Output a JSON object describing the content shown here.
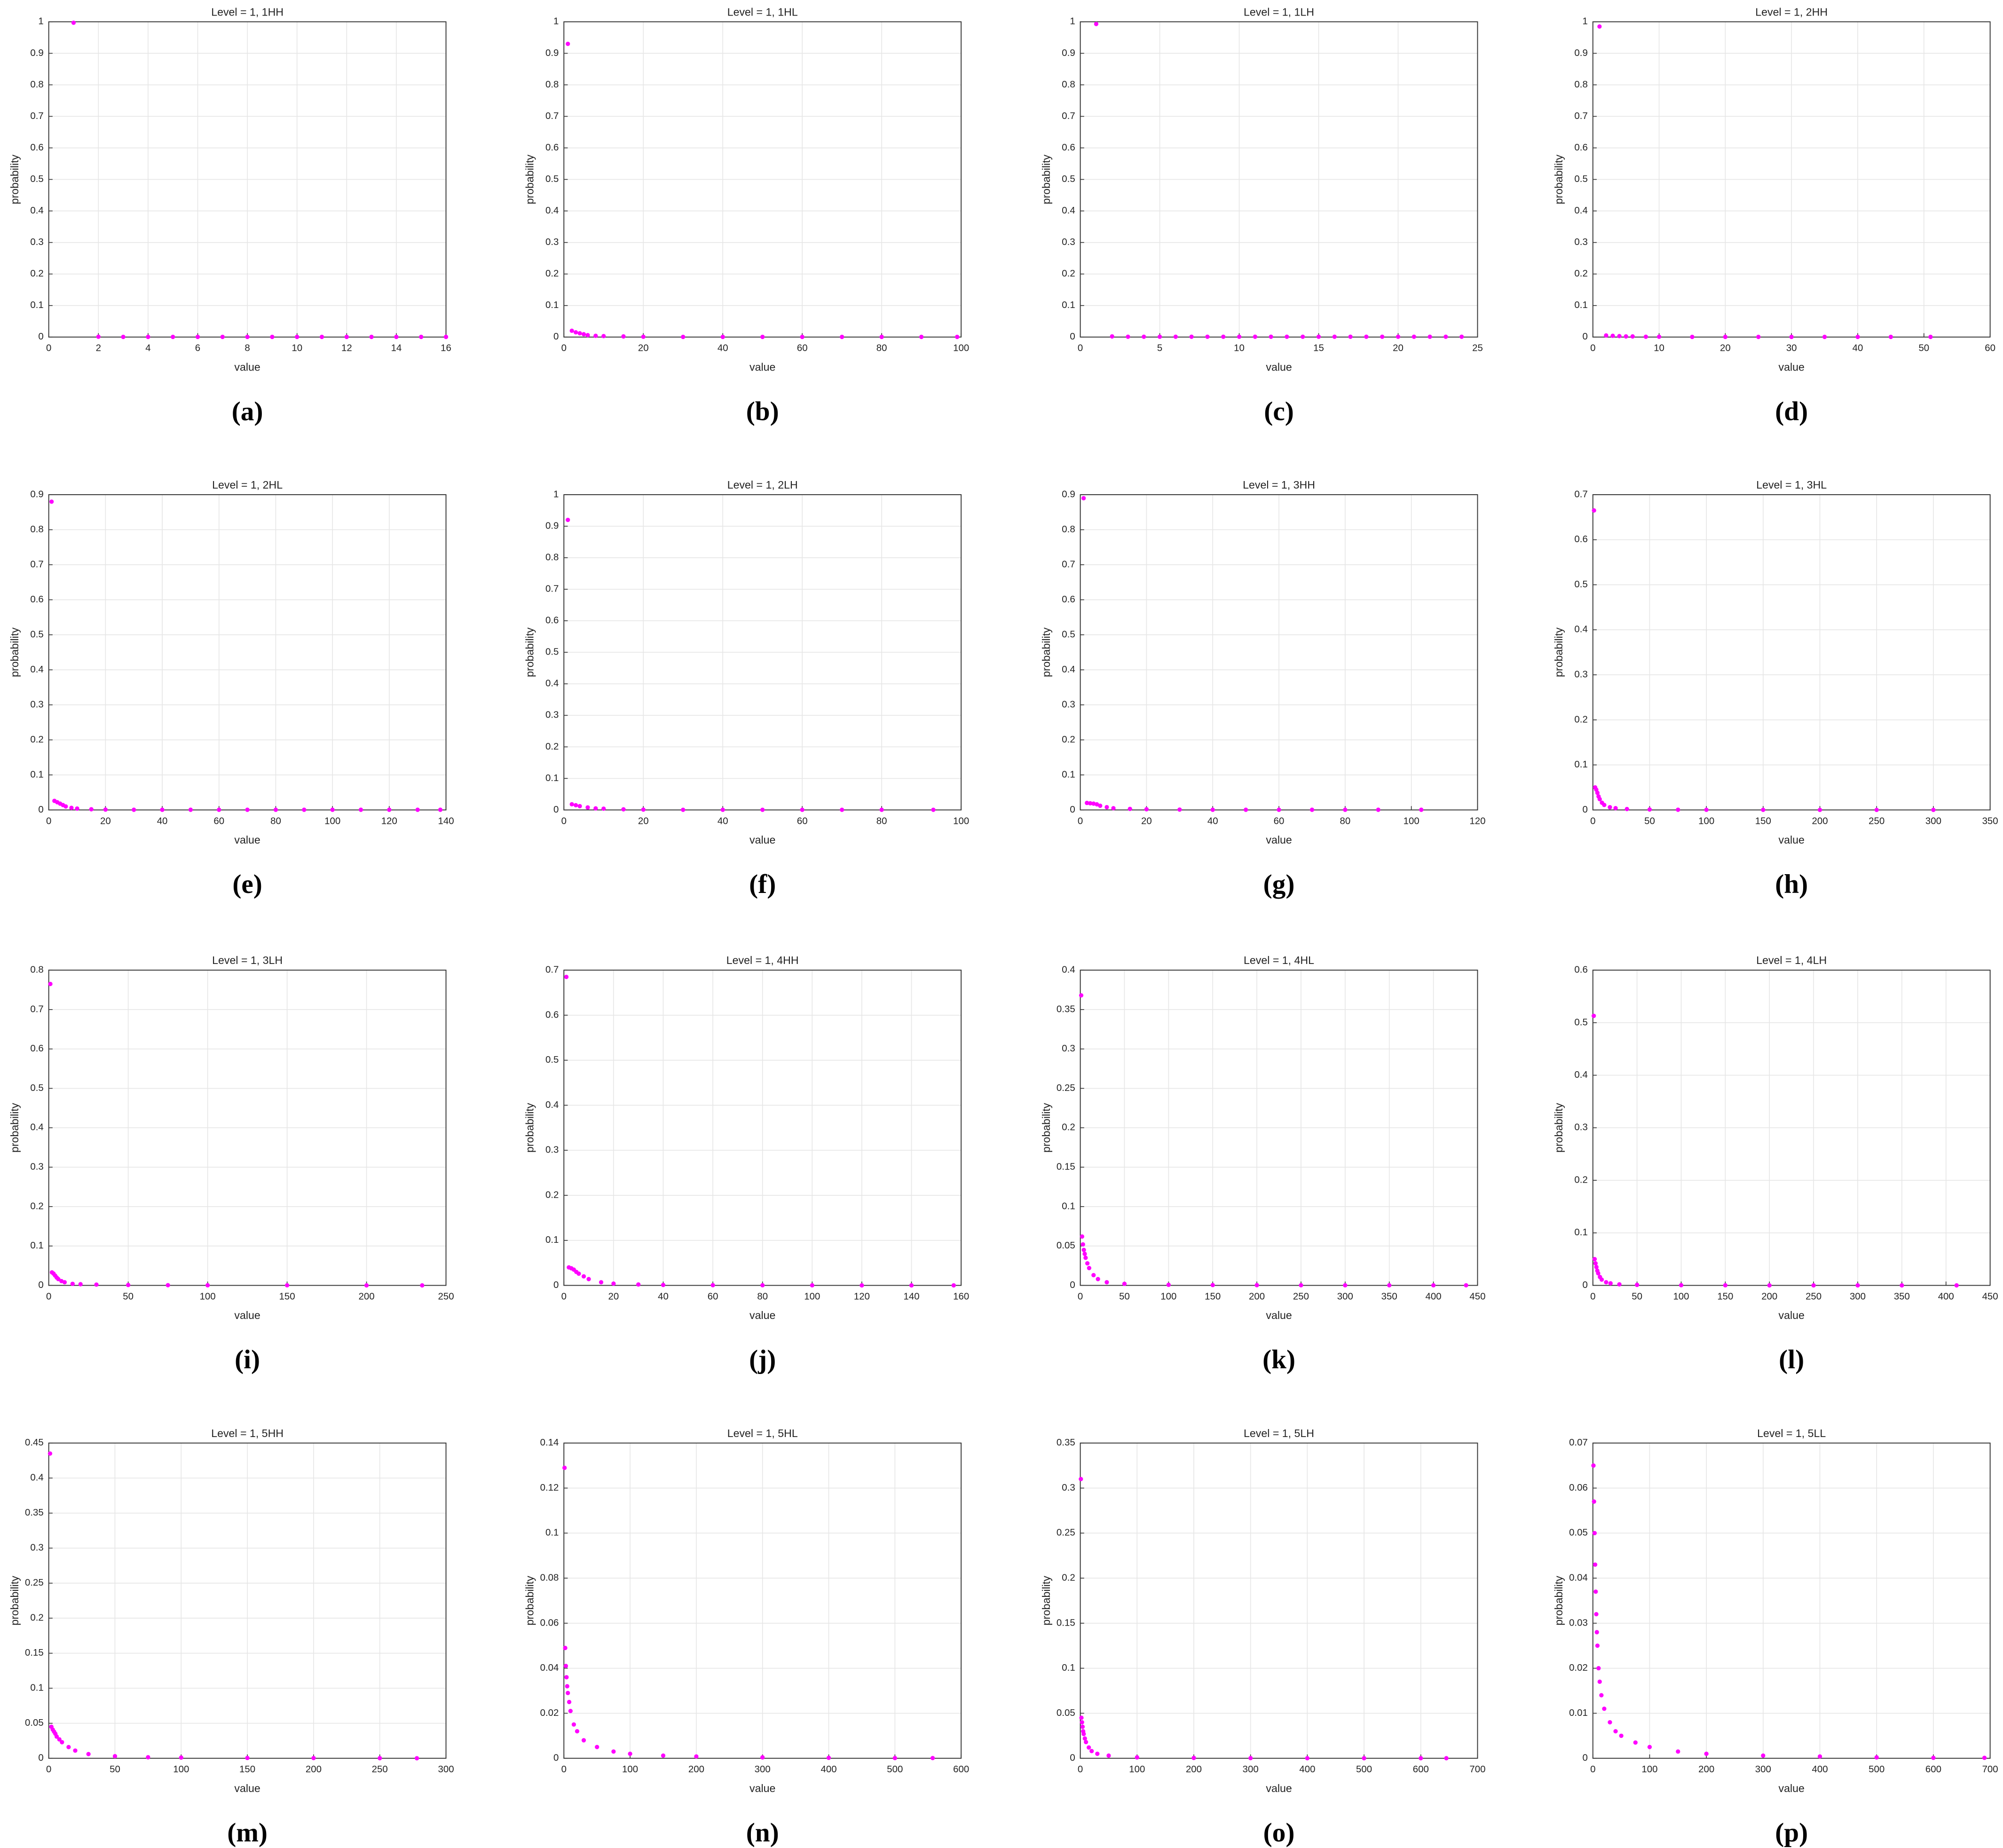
{
  "chart_data": [
    {
      "type": "scatter",
      "title": "Level = 1, 1HH",
      "xlabel": "value",
      "ylabel": "probability",
      "caption": "(a)",
      "color": "#ff00ff",
      "grid": true,
      "x": [
        1,
        2,
        3,
        4,
        5,
        6,
        7,
        8,
        9,
        10,
        11,
        12,
        13,
        14,
        15,
        16
      ],
      "values": [
        0.997,
        0.001,
        0.0005,
        0.0005,
        0.0005,
        0.0005,
        0.0005,
        0.0005,
        0.0005,
        0.0005,
        0.0005,
        0.0005,
        0.0005,
        0.0005,
        0.0005,
        0.0005
      ],
      "xlim": [
        0,
        16
      ],
      "xticks": [
        0,
        2,
        4,
        6,
        8,
        10,
        12,
        14,
        16
      ],
      "ylim": [
        0,
        1
      ],
      "yticks": [
        0,
        0.1,
        0.2,
        0.3,
        0.4,
        0.5,
        0.6,
        0.7,
        0.8,
        0.9,
        1
      ]
    },
    {
      "type": "scatter",
      "title": "Level = 1, 1HL",
      "xlabel": "value",
      "ylabel": "probability",
      "caption": "(b)",
      "color": "#ff00ff",
      "grid": true,
      "x": [
        1,
        2,
        3,
        4,
        5,
        6,
        8,
        10,
        15,
        20,
        30,
        40,
        50,
        60,
        70,
        80,
        90,
        99
      ],
      "values": [
        0.93,
        0.02,
        0.015,
        0.012,
        0.009,
        0.006,
        0.004,
        0.003,
        0.002,
        0.001,
        0.0005,
        0.0005,
        0.0005,
        0.0005,
        0.0005,
        0.0005,
        0.0005,
        0.0005
      ],
      "xlim": [
        0,
        100
      ],
      "xticks": [
        0,
        20,
        40,
        60,
        80,
        100
      ],
      "ylim": [
        0,
        1
      ],
      "yticks": [
        0,
        0.1,
        0.2,
        0.3,
        0.4,
        0.5,
        0.6,
        0.7,
        0.8,
        0.9,
        1
      ]
    },
    {
      "type": "scatter",
      "title": "Level = 1, 1LH",
      "xlabel": "value",
      "ylabel": "probability",
      "caption": "(c)",
      "color": "#ff00ff",
      "grid": true,
      "x": [
        1,
        2,
        3,
        4,
        5,
        6,
        7,
        8,
        9,
        10,
        11,
        12,
        13,
        14,
        15,
        16,
        17,
        18,
        19,
        20,
        21,
        22,
        23,
        24
      ],
      "values": [
        0.993,
        0.002,
        0.001,
        0.001,
        0.001,
        0.001,
        0.001,
        0.001,
        0.001,
        0.001,
        0.001,
        0.001,
        0.001,
        0.001,
        0.001,
        0.001,
        0.001,
        0.001,
        0.001,
        0.001,
        0.001,
        0.001,
        0.001,
        0.001
      ],
      "xlim": [
        0,
        25
      ],
      "xticks": [
        0,
        5,
        10,
        15,
        20,
        25
      ],
      "ylim": [
        0,
        1
      ],
      "yticks": [
        0,
        0.1,
        0.2,
        0.3,
        0.4,
        0.5,
        0.6,
        0.7,
        0.8,
        0.9,
        1
      ]
    },
    {
      "type": "scatter",
      "title": "Level = 1, 2HH",
      "xlabel": "value",
      "ylabel": "probability",
      "caption": "(d)",
      "color": "#ff00ff",
      "grid": true,
      "x": [
        1,
        2,
        3,
        4,
        5,
        6,
        8,
        10,
        15,
        20,
        25,
        30,
        35,
        40,
        45,
        51
      ],
      "values": [
        0.985,
        0.005,
        0.004,
        0.003,
        0.002,
        0.002,
        0.001,
        0.001,
        0.0005,
        0.0005,
        0.0005,
        0.0005,
        0.0005,
        0.0005,
        0.0005,
        0.0005
      ],
      "xlim": [
        0,
        60
      ],
      "xticks": [
        0,
        10,
        20,
        30,
        40,
        50,
        60
      ],
      "ylim": [
        0,
        1
      ],
      "yticks": [
        0,
        0.1,
        0.2,
        0.3,
        0.4,
        0.5,
        0.6,
        0.7,
        0.8,
        0.9,
        1
      ]
    },
    {
      "type": "scatter",
      "title": "Level = 1, 2HL",
      "xlabel": "value",
      "ylabel": "probability",
      "caption": "(e)",
      "color": "#ff00ff",
      "grid": true,
      "x": [
        1,
        2,
        3,
        4,
        5,
        6,
        8,
        10,
        15,
        20,
        30,
        40,
        50,
        60,
        70,
        80,
        90,
        100,
        110,
        120,
        130,
        138
      ],
      "values": [
        0.88,
        0.026,
        0.022,
        0.018,
        0.014,
        0.01,
        0.006,
        0.004,
        0.002,
        0.001,
        0.0005,
        0.0005,
        0.0005,
        0.0005,
        0.0005,
        0.0005,
        0.0005,
        0.0005,
        0.0005,
        0.0005,
        0.0005,
        0.0005
      ],
      "xlim": [
        0,
        140
      ],
      "xticks": [
        0,
        20,
        40,
        60,
        80,
        100,
        120,
        140
      ],
      "ylim": [
        0,
        0.9
      ],
      "yticks": [
        0,
        0.1,
        0.2,
        0.3,
        0.4,
        0.5,
        0.6,
        0.7,
        0.8,
        0.9
      ]
    },
    {
      "type": "scatter",
      "title": "Level = 1, 2LH",
      "xlabel": "value",
      "ylabel": "probability",
      "caption": "(f)",
      "color": "#ff00ff",
      "grid": true,
      "x": [
        1,
        2,
        3,
        4,
        6,
        8,
        10,
        15,
        20,
        30,
        40,
        50,
        60,
        70,
        80,
        93
      ],
      "values": [
        0.92,
        0.018,
        0.015,
        0.012,
        0.008,
        0.005,
        0.004,
        0.002,
        0.001,
        0.0005,
        0.0005,
        0.0005,
        0.0005,
        0.0005,
        0.0005,
        0.0005
      ],
      "xlim": [
        0,
        100
      ],
      "xticks": [
        0,
        20,
        40,
        60,
        80,
        100
      ],
      "ylim": [
        0,
        1
      ],
      "yticks": [
        0,
        0.1,
        0.2,
        0.3,
        0.4,
        0.5,
        0.6,
        0.7,
        0.8,
        0.9,
        1
      ]
    },
    {
      "type": "scatter",
      "title": "Level = 1, 3HH",
      "xlabel": "value",
      "ylabel": "probability",
      "caption": "(g)",
      "color": "#ff00ff",
      "grid": true,
      "x": [
        1,
        2,
        3,
        4,
        5,
        6,
        8,
        10,
        15,
        20,
        30,
        40,
        50,
        60,
        70,
        80,
        90,
        103
      ],
      "values": [
        0.89,
        0.02,
        0.019,
        0.018,
        0.016,
        0.012,
        0.008,
        0.005,
        0.003,
        0.002,
        0.001,
        0.0005,
        0.0005,
        0.0005,
        0.0005,
        0.0005,
        0.0005,
        0.0005
      ],
      "xlim": [
        0,
        120
      ],
      "xticks": [
        0,
        20,
        40,
        60,
        80,
        100,
        120
      ],
      "ylim": [
        0,
        0.9
      ],
      "yticks": [
        0,
        0.1,
        0.2,
        0.3,
        0.4,
        0.5,
        0.6,
        0.7,
        0.8,
        0.9
      ]
    },
    {
      "type": "scatter",
      "title": "Level = 1, 3HL",
      "xlabel": "value",
      "ylabel": "probability",
      "caption": "(h)",
      "color": "#ff00ff",
      "grid": true,
      "x": [
        1,
        2,
        3,
        4,
        5,
        6,
        8,
        10,
        15,
        20,
        30,
        50,
        75,
        100,
        150,
        200,
        250,
        300
      ],
      "values": [
        0.665,
        0.05,
        0.045,
        0.038,
        0.03,
        0.024,
        0.016,
        0.011,
        0.006,
        0.004,
        0.002,
        0.001,
        0.0005,
        0.0003,
        0.0002,
        0.0001,
        0.0001,
        0.0001
      ],
      "xlim": [
        0,
        350
      ],
      "xticks": [
        0,
        50,
        100,
        150,
        200,
        250,
        300,
        350
      ],
      "ylim": [
        0,
        0.7
      ],
      "yticks": [
        0,
        0.1,
        0.2,
        0.3,
        0.4,
        0.5,
        0.6,
        0.7
      ]
    },
    {
      "type": "scatter",
      "title": "Level = 1, 3LH",
      "xlabel": "value",
      "ylabel": "probability",
      "caption": "(i)",
      "color": "#ff00ff",
      "grid": true,
      "x": [
        1,
        2,
        3,
        4,
        5,
        6,
        8,
        10,
        15,
        20,
        30,
        50,
        75,
        100,
        150,
        200,
        235
      ],
      "values": [
        0.765,
        0.033,
        0.03,
        0.025,
        0.02,
        0.016,
        0.011,
        0.008,
        0.004,
        0.003,
        0.002,
        0.001,
        0.0005,
        0.0003,
        0.0002,
        0.0001,
        0.0001
      ],
      "xlim": [
        0,
        250
      ],
      "xticks": [
        0,
        50,
        100,
        150,
        200,
        250
      ],
      "ylim": [
        0,
        0.8
      ],
      "yticks": [
        0,
        0.1,
        0.2,
        0.3,
        0.4,
        0.5,
        0.6,
        0.7,
        0.8
      ]
    },
    {
      "type": "scatter",
      "title": "Level = 1, 4HH",
      "xlabel": "value",
      "ylabel": "probability",
      "caption": "(j)",
      "color": "#ff00ff",
      "grid": true,
      "x": [
        1,
        2,
        3,
        4,
        5,
        6,
        8,
        10,
        15,
        20,
        30,
        40,
        60,
        80,
        100,
        120,
        140,
        157
      ],
      "values": [
        0.685,
        0.04,
        0.038,
        0.035,
        0.03,
        0.026,
        0.02,
        0.014,
        0.007,
        0.004,
        0.002,
        0.001,
        0.0005,
        0.0003,
        0.0002,
        0.0001,
        0.0001,
        0.0001
      ],
      "xlim": [
        0,
        160
      ],
      "xticks": [
        0,
        20,
        40,
        60,
        80,
        100,
        120,
        140,
        160
      ],
      "ylim": [
        0,
        0.7
      ],
      "yticks": [
        0,
        0.1,
        0.2,
        0.3,
        0.4,
        0.5,
        0.6,
        0.7
      ]
    },
    {
      "type": "scatter",
      "title": "Level = 1, 4HL",
      "xlabel": "value",
      "ylabel": "probability",
      "caption": "(k)",
      "color": "#ff00ff",
      "grid": true,
      "x": [
        1,
        2,
        3,
        4,
        5,
        6,
        8,
        10,
        15,
        20,
        30,
        50,
        100,
        150,
        200,
        250,
        300,
        350,
        400,
        437
      ],
      "values": [
        0.368,
        0.062,
        0.052,
        0.045,
        0.04,
        0.035,
        0.028,
        0.022,
        0.013,
        0.008,
        0.004,
        0.002,
        0.0007,
        0.0004,
        0.0003,
        0.0002,
        0.0001,
        0.0001,
        0.0001,
        0.0001
      ],
      "xlim": [
        0,
        450
      ],
      "xticks": [
        0,
        50,
        100,
        150,
        200,
        250,
        300,
        350,
        400,
        450
      ],
      "ylim": [
        0,
        0.4
      ],
      "yticks": [
        0,
        0.05,
        0.1,
        0.15,
        0.2,
        0.25,
        0.3,
        0.35,
        0.4
      ]
    },
    {
      "type": "scatter",
      "title": "Level = 1, 4LH",
      "xlabel": "value",
      "ylabel": "probability",
      "caption": "(l)",
      "color": "#ff00ff",
      "grid": true,
      "x": [
        1,
        2,
        3,
        4,
        5,
        6,
        8,
        10,
        15,
        20,
        30,
        50,
        100,
        150,
        200,
        250,
        300,
        350,
        412
      ],
      "values": [
        0.513,
        0.05,
        0.042,
        0.035,
        0.028,
        0.023,
        0.016,
        0.011,
        0.006,
        0.004,
        0.002,
        0.001,
        0.0004,
        0.0002,
        0.0001,
        0.0001,
        0.0001,
        0.0001,
        0.0001
      ],
      "xlim": [
        0,
        450
      ],
      "xticks": [
        0,
        50,
        100,
        150,
        200,
        250,
        300,
        350,
        400,
        450
      ],
      "ylim": [
        0,
        0.6
      ],
      "yticks": [
        0,
        0.1,
        0.2,
        0.3,
        0.4,
        0.5,
        0.6
      ]
    },
    {
      "type": "scatter",
      "title": "Level = 1, 5HH",
      "xlabel": "value",
      "ylabel": "probability",
      "caption": "(m)",
      "color": "#ff00ff",
      "grid": true,
      "x": [
        1,
        2,
        3,
        4,
        5,
        6,
        8,
        10,
        15,
        20,
        30,
        50,
        75,
        100,
        150,
        200,
        250,
        278
      ],
      "values": [
        0.435,
        0.045,
        0.041,
        0.038,
        0.035,
        0.031,
        0.027,
        0.023,
        0.016,
        0.011,
        0.006,
        0.003,
        0.0015,
        0.001,
        0.0005,
        0.0003,
        0.0002,
        0.0001
      ],
      "xlim": [
        0,
        300
      ],
      "xticks": [
        0,
        50,
        100,
        150,
        200,
        250,
        300
      ],
      "ylim": [
        0,
        0.45
      ],
      "yticks": [
        0,
        0.05,
        0.1,
        0.15,
        0.2,
        0.25,
        0.3,
        0.35,
        0.4,
        0.45
      ]
    },
    {
      "type": "scatter",
      "title": "Level = 1, 5HL",
      "xlabel": "value",
      "ylabel": "probability",
      "caption": "(n)",
      "color": "#ff00ff",
      "grid": true,
      "x": [
        1,
        2,
        3,
        4,
        5,
        6,
        8,
        10,
        15,
        20,
        30,
        50,
        75,
        100,
        150,
        200,
        300,
        400,
        500,
        557
      ],
      "values": [
        0.129,
        0.049,
        0.041,
        0.036,
        0.032,
        0.029,
        0.025,
        0.021,
        0.015,
        0.012,
        0.008,
        0.005,
        0.003,
        0.002,
        0.0012,
        0.0008,
        0.0004,
        0.0002,
        0.0001,
        0.0001
      ],
      "xlim": [
        0,
        600
      ],
      "xticks": [
        0,
        100,
        200,
        300,
        400,
        500,
        600
      ],
      "ylim": [
        0,
        0.14
      ],
      "yticks": [
        0,
        0.02,
        0.04,
        0.06,
        0.08,
        0.1,
        0.12,
        0.14
      ]
    },
    {
      "type": "scatter",
      "title": "Level = 1, 5LH",
      "xlabel": "value",
      "ylabel": "probability",
      "caption": "(o)",
      "color": "#ff00ff",
      "grid": true,
      "x": [
        1,
        2,
        3,
        4,
        5,
        6,
        8,
        10,
        15,
        20,
        30,
        50,
        100,
        200,
        300,
        400,
        500,
        600,
        645
      ],
      "values": [
        0.31,
        0.045,
        0.04,
        0.035,
        0.03,
        0.027,
        0.022,
        0.018,
        0.012,
        0.008,
        0.005,
        0.003,
        0.001,
        0.0004,
        0.0002,
        0.0001,
        0.0001,
        0.0001,
        0.0001
      ],
      "xlim": [
        0,
        700
      ],
      "xticks": [
        0,
        100,
        200,
        300,
        400,
        500,
        600,
        700
      ],
      "ylim": [
        0,
        0.35
      ],
      "yticks": [
        0,
        0.05,
        0.1,
        0.15,
        0.2,
        0.25,
        0.3,
        0.35
      ]
    },
    {
      "type": "scatter",
      "title": "Level = 1, 5LL",
      "xlabel": "value",
      "ylabel": "probability",
      "caption": "(p)",
      "color": "#ff00ff",
      "grid": true,
      "x": [
        1,
        2,
        3,
        4,
        5,
        6,
        7,
        8,
        10,
        12,
        15,
        20,
        30,
        40,
        50,
        75,
        100,
        150,
        200,
        300,
        400,
        500,
        600,
        690
      ],
      "values": [
        0.065,
        0.057,
        0.05,
        0.043,
        0.037,
        0.032,
        0.028,
        0.025,
        0.02,
        0.017,
        0.014,
        0.011,
        0.008,
        0.006,
        0.005,
        0.0035,
        0.0025,
        0.0015,
        0.001,
        0.0006,
        0.0004,
        0.0002,
        0.0001,
        0.0001
      ],
      "xlim": [
        0,
        700
      ],
      "xticks": [
        0,
        100,
        200,
        300,
        400,
        500,
        600,
        700
      ],
      "ylim": [
        0,
        0.07
      ],
      "yticks": [
        0,
        0.01,
        0.02,
        0.03,
        0.04,
        0.05,
        0.06,
        0.07
      ]
    }
  ]
}
